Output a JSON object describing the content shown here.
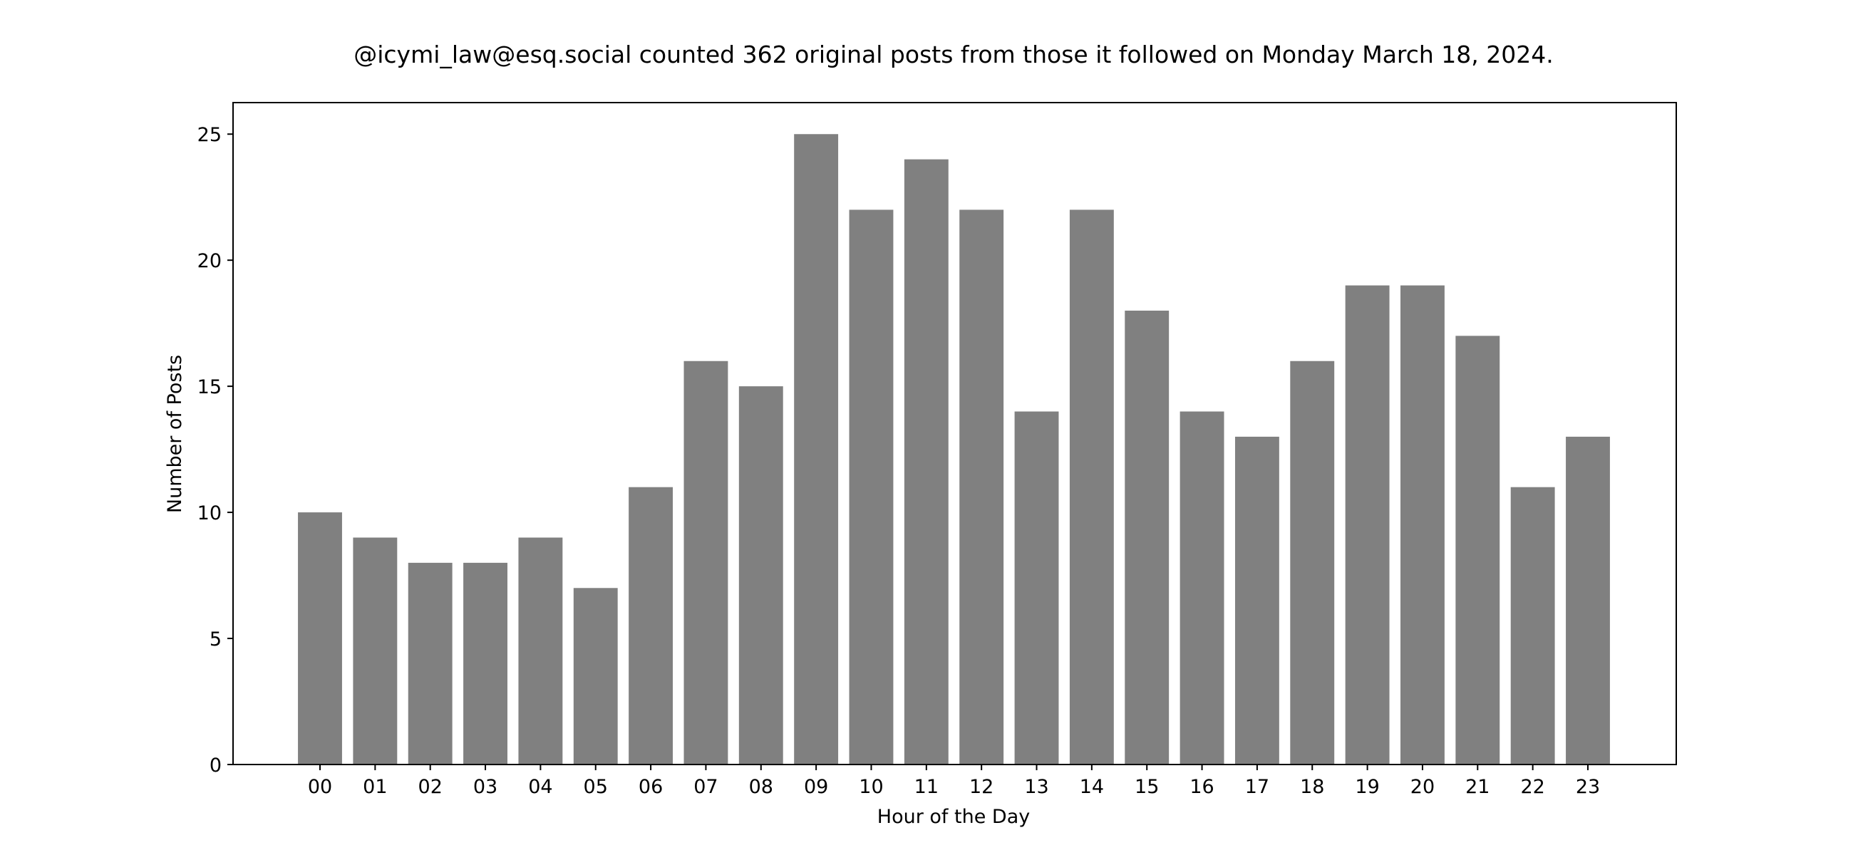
{
  "chart_data": {
    "type": "bar",
    "title": "@icymi_law@esq.social counted 362 original posts from those it followed on Monday March 18, 2024.",
    "xlabel": "Hour of the Day",
    "ylabel": "Number of Posts",
    "categories": [
      "00",
      "01",
      "02",
      "03",
      "04",
      "05",
      "06",
      "07",
      "08",
      "09",
      "10",
      "11",
      "12",
      "13",
      "14",
      "15",
      "16",
      "17",
      "18",
      "19",
      "20",
      "21",
      "22",
      "23"
    ],
    "values": [
      10,
      9,
      8,
      8,
      9,
      7,
      11,
      16,
      15,
      25,
      22,
      24,
      22,
      14,
      22,
      18,
      14,
      13,
      16,
      19,
      19,
      17,
      11,
      13
    ],
    "ylim": [
      0,
      26.25
    ],
    "yticks": [
      0,
      5,
      10,
      15,
      20,
      25
    ],
    "bar_color": "#808080",
    "grid": false,
    "legend": "none"
  }
}
